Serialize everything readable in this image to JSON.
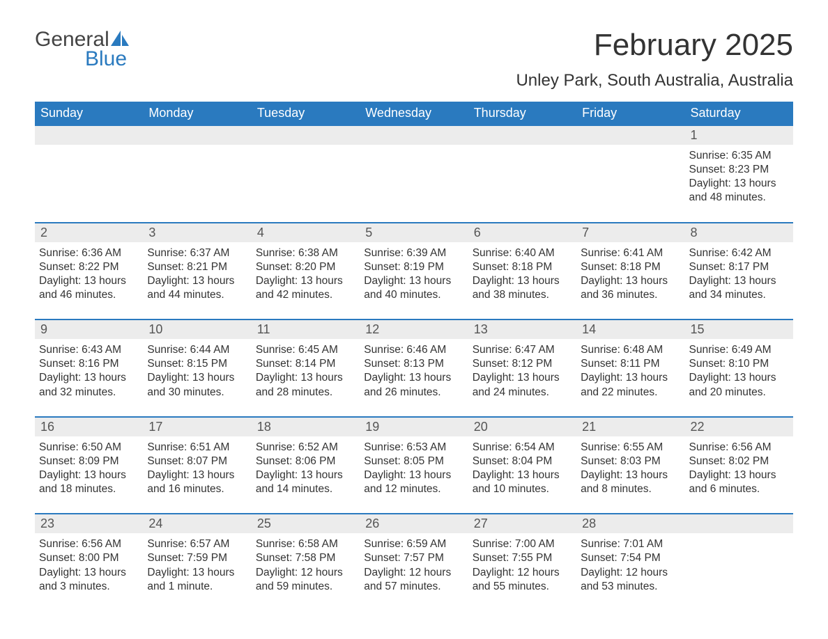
{
  "logo": {
    "general": "General",
    "blue": "Blue"
  },
  "title": "February 2025",
  "location": "Unley Park, South Australia, Australia",
  "colors": {
    "header_bg": "#2a7abf",
    "header_text": "#ffffff",
    "daynum_bg": "#ececec",
    "border_top": "#2a7abf",
    "body_text": "#333333",
    "logo_blue": "#2a7abf"
  },
  "weekdays": [
    "Sunday",
    "Monday",
    "Tuesday",
    "Wednesday",
    "Thursday",
    "Friday",
    "Saturday"
  ],
  "weeks": [
    [
      null,
      null,
      null,
      null,
      null,
      null,
      {
        "num": "1",
        "sunrise": "Sunrise: 6:35 AM",
        "sunset": "Sunset: 8:23 PM",
        "daylight": "Daylight: 13 hours and 48 minutes."
      }
    ],
    [
      {
        "num": "2",
        "sunrise": "Sunrise: 6:36 AM",
        "sunset": "Sunset: 8:22 PM",
        "daylight": "Daylight: 13 hours and 46 minutes."
      },
      {
        "num": "3",
        "sunrise": "Sunrise: 6:37 AM",
        "sunset": "Sunset: 8:21 PM",
        "daylight": "Daylight: 13 hours and 44 minutes."
      },
      {
        "num": "4",
        "sunrise": "Sunrise: 6:38 AM",
        "sunset": "Sunset: 8:20 PM",
        "daylight": "Daylight: 13 hours and 42 minutes."
      },
      {
        "num": "5",
        "sunrise": "Sunrise: 6:39 AM",
        "sunset": "Sunset: 8:19 PM",
        "daylight": "Daylight: 13 hours and 40 minutes."
      },
      {
        "num": "6",
        "sunrise": "Sunrise: 6:40 AM",
        "sunset": "Sunset: 8:18 PM",
        "daylight": "Daylight: 13 hours and 38 minutes."
      },
      {
        "num": "7",
        "sunrise": "Sunrise: 6:41 AM",
        "sunset": "Sunset: 8:18 PM",
        "daylight": "Daylight: 13 hours and 36 minutes."
      },
      {
        "num": "8",
        "sunrise": "Sunrise: 6:42 AM",
        "sunset": "Sunset: 8:17 PM",
        "daylight": "Daylight: 13 hours and 34 minutes."
      }
    ],
    [
      {
        "num": "9",
        "sunrise": "Sunrise: 6:43 AM",
        "sunset": "Sunset: 8:16 PM",
        "daylight": "Daylight: 13 hours and 32 minutes."
      },
      {
        "num": "10",
        "sunrise": "Sunrise: 6:44 AM",
        "sunset": "Sunset: 8:15 PM",
        "daylight": "Daylight: 13 hours and 30 minutes."
      },
      {
        "num": "11",
        "sunrise": "Sunrise: 6:45 AM",
        "sunset": "Sunset: 8:14 PM",
        "daylight": "Daylight: 13 hours and 28 minutes."
      },
      {
        "num": "12",
        "sunrise": "Sunrise: 6:46 AM",
        "sunset": "Sunset: 8:13 PM",
        "daylight": "Daylight: 13 hours and 26 minutes."
      },
      {
        "num": "13",
        "sunrise": "Sunrise: 6:47 AM",
        "sunset": "Sunset: 8:12 PM",
        "daylight": "Daylight: 13 hours and 24 minutes."
      },
      {
        "num": "14",
        "sunrise": "Sunrise: 6:48 AM",
        "sunset": "Sunset: 8:11 PM",
        "daylight": "Daylight: 13 hours and 22 minutes."
      },
      {
        "num": "15",
        "sunrise": "Sunrise: 6:49 AM",
        "sunset": "Sunset: 8:10 PM",
        "daylight": "Daylight: 13 hours and 20 minutes."
      }
    ],
    [
      {
        "num": "16",
        "sunrise": "Sunrise: 6:50 AM",
        "sunset": "Sunset: 8:09 PM",
        "daylight": "Daylight: 13 hours and 18 minutes."
      },
      {
        "num": "17",
        "sunrise": "Sunrise: 6:51 AM",
        "sunset": "Sunset: 8:07 PM",
        "daylight": "Daylight: 13 hours and 16 minutes."
      },
      {
        "num": "18",
        "sunrise": "Sunrise: 6:52 AM",
        "sunset": "Sunset: 8:06 PM",
        "daylight": "Daylight: 13 hours and 14 minutes."
      },
      {
        "num": "19",
        "sunrise": "Sunrise: 6:53 AM",
        "sunset": "Sunset: 8:05 PM",
        "daylight": "Daylight: 13 hours and 12 minutes."
      },
      {
        "num": "20",
        "sunrise": "Sunrise: 6:54 AM",
        "sunset": "Sunset: 8:04 PM",
        "daylight": "Daylight: 13 hours and 10 minutes."
      },
      {
        "num": "21",
        "sunrise": "Sunrise: 6:55 AM",
        "sunset": "Sunset: 8:03 PM",
        "daylight": "Daylight: 13 hours and 8 minutes."
      },
      {
        "num": "22",
        "sunrise": "Sunrise: 6:56 AM",
        "sunset": "Sunset: 8:02 PM",
        "daylight": "Daylight: 13 hours and 6 minutes."
      }
    ],
    [
      {
        "num": "23",
        "sunrise": "Sunrise: 6:56 AM",
        "sunset": "Sunset: 8:00 PM",
        "daylight": "Daylight: 13 hours and 3 minutes."
      },
      {
        "num": "24",
        "sunrise": "Sunrise: 6:57 AM",
        "sunset": "Sunset: 7:59 PM",
        "daylight": "Daylight: 13 hours and 1 minute."
      },
      {
        "num": "25",
        "sunrise": "Sunrise: 6:58 AM",
        "sunset": "Sunset: 7:58 PM",
        "daylight": "Daylight: 12 hours and 59 minutes."
      },
      {
        "num": "26",
        "sunrise": "Sunrise: 6:59 AM",
        "sunset": "Sunset: 7:57 PM",
        "daylight": "Daylight: 12 hours and 57 minutes."
      },
      {
        "num": "27",
        "sunrise": "Sunrise: 7:00 AM",
        "sunset": "Sunset: 7:55 PM",
        "daylight": "Daylight: 12 hours and 55 minutes."
      },
      {
        "num": "28",
        "sunrise": "Sunrise: 7:01 AM",
        "sunset": "Sunset: 7:54 PM",
        "daylight": "Daylight: 12 hours and 53 minutes."
      },
      null
    ]
  ]
}
